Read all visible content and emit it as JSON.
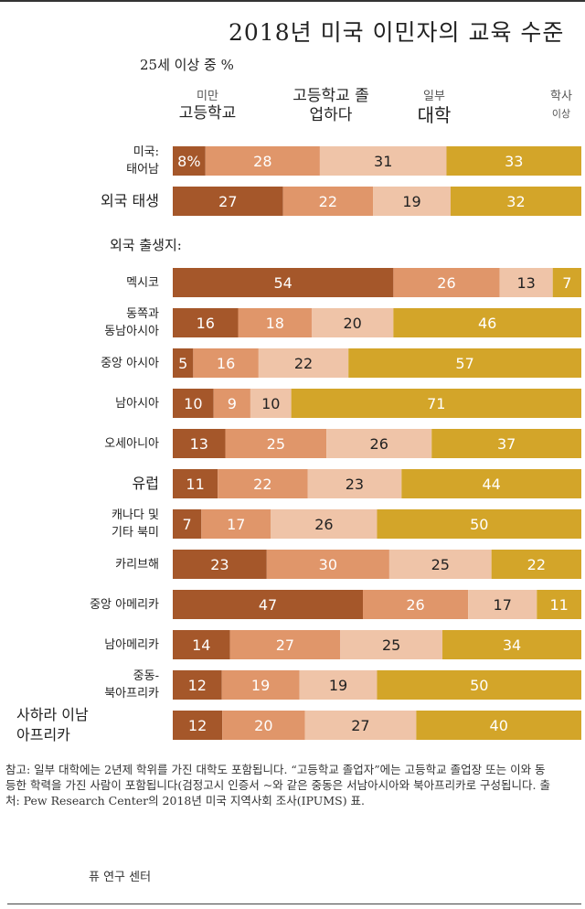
{
  "title": "2018년 미국 이민자의 교육 수준",
  "subtitle": "25세 이상 중 %",
  "group_label": "외국 출생지:",
  "headers": [
    {
      "small": "미만",
      "big": "고등학교"
    },
    {
      "small": "",
      "big": "고등학교 졸업하다"
    },
    {
      "small": "일부",
      "big": "대학"
    },
    {
      "small": "학사",
      "big": "이상"
    }
  ],
  "notes": "참고: 일부 대학에는 2년제 학위를 가진 대학도 포함됩니다. “고등학교 졸업자”에는 고등학교 졸업장 또는 이와 동등한 학력을 가진 사람이 포함됩니다(검정고시 인증서 ~와 같은 중동은 서남아시아와 북아프리카로 구성됩니다. 출처: Pew Research Center의 2018년 미국 지역사회 조사(IPUMS) 표.",
  "source": "퓨 연구 센터",
  "colors": {
    "less_than_hs": "#a5572a",
    "hs_grad": "#e0966a",
    "some_college": "#efc4a8",
    "bachelors": "#d3a529",
    "label_light": "#ffffff",
    "label_dark": "#222222"
  },
  "chart_data": {
    "type": "bar",
    "orientation": "horizontal",
    "stacked": true,
    "title": "2018년 미국 이민자의 교육 수준",
    "subtitle": "25세 이상 중 %",
    "xlim": [
      0,
      100
    ],
    "series": [
      {
        "name": "미만 고등학교"
      },
      {
        "name": "고등학교 졸업하다"
      },
      {
        "name": "일부 대학"
      },
      {
        "name": "학사 이상"
      }
    ],
    "rows": [
      {
        "label": [
          "미국:",
          "태어남"
        ],
        "values": [
          8,
          28,
          31,
          33
        ],
        "display": [
          "8%",
          "28",
          "31",
          "33"
        ]
      },
      {
        "label": [
          "외국 태생"
        ],
        "values": [
          27,
          22,
          19,
          32
        ],
        "display": [
          "27",
          "22",
          "19",
          "32"
        ],
        "big": true
      },
      {
        "label": [
          "멕시코"
        ],
        "values": [
          54,
          26,
          13,
          7
        ],
        "display": [
          "54",
          "26",
          "13",
          "7"
        ]
      },
      {
        "label": [
          "동쪽과",
          "동남아시아"
        ],
        "values": [
          16,
          18,
          20,
          46
        ],
        "display": [
          "16",
          "18",
          "20",
          "46"
        ]
      },
      {
        "label": [
          "중앙 아시아"
        ],
        "values": [
          5,
          16,
          22,
          57
        ],
        "display": [
          "5",
          "16",
          "22",
          "57"
        ]
      },
      {
        "label": [
          "남아시아"
        ],
        "values": [
          10,
          9,
          10,
          71
        ],
        "display": [
          "10",
          "9",
          "10",
          "71"
        ]
      },
      {
        "label": [
          "오세아니아"
        ],
        "values": [
          13,
          25,
          26,
          37
        ],
        "display": [
          "13",
          "25",
          "26",
          "37"
        ]
      },
      {
        "label": [
          "유럽"
        ],
        "values": [
          11,
          22,
          23,
          44
        ],
        "display": [
          "11",
          "22",
          "23",
          "44"
        ],
        "big": true
      },
      {
        "label": [
          "캐나다 및",
          "기타 북미"
        ],
        "values": [
          7,
          17,
          26,
          50
        ],
        "display": [
          "7",
          "17",
          "26",
          "50"
        ]
      },
      {
        "label": [
          "카리브해"
        ],
        "values": [
          23,
          30,
          25,
          22
        ],
        "display": [
          "23",
          "30",
          "25",
          "22"
        ]
      },
      {
        "label": [
          "중앙 아메리카"
        ],
        "values": [
          47,
          26,
          17,
          11
        ],
        "display": [
          "47",
          "26",
          "17",
          "11"
        ]
      },
      {
        "label": [
          "남아메리카"
        ],
        "values": [
          14,
          27,
          25,
          34
        ],
        "display": [
          "14",
          "27",
          "25",
          "34"
        ]
      },
      {
        "label": [
          "중동-",
          "북아프리카"
        ],
        "values": [
          12,
          19,
          19,
          50
        ],
        "display": [
          "12",
          "19",
          "19",
          "50"
        ]
      },
      {
        "label": [
          "사하라 이남",
          "아프리카"
        ],
        "values": [
          12,
          20,
          27,
          40
        ],
        "display": [
          "12",
          "20",
          "27",
          "40"
        ],
        "big": true
      }
    ]
  }
}
